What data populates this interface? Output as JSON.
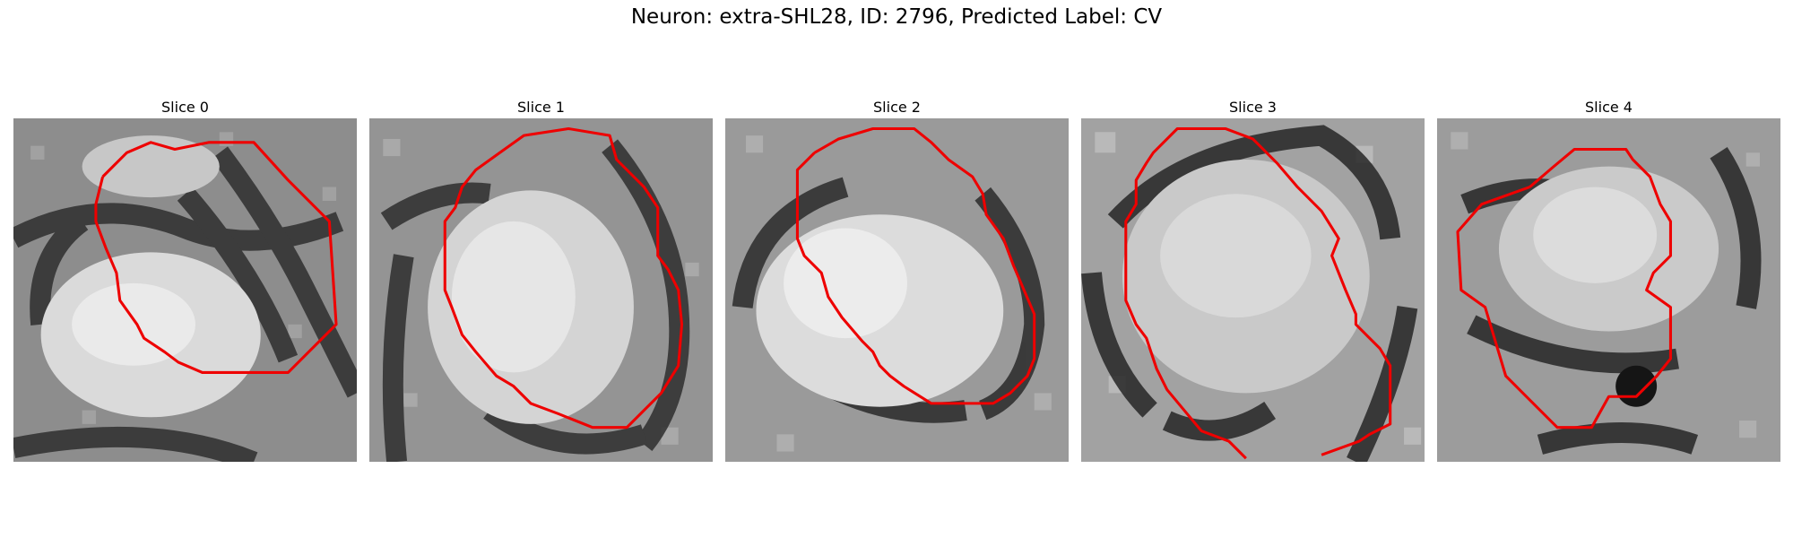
{
  "title": "Neuron: extra-SHL28, ID: 2796, Predicted Label: CV",
  "contour_color": "#ee0000",
  "panels": [
    {
      "title": "Slice 0"
    },
    {
      "title": "Slice 1"
    },
    {
      "title": "Slice 2"
    },
    {
      "title": "Slice 3"
    },
    {
      "title": "Slice 4"
    }
  ]
}
